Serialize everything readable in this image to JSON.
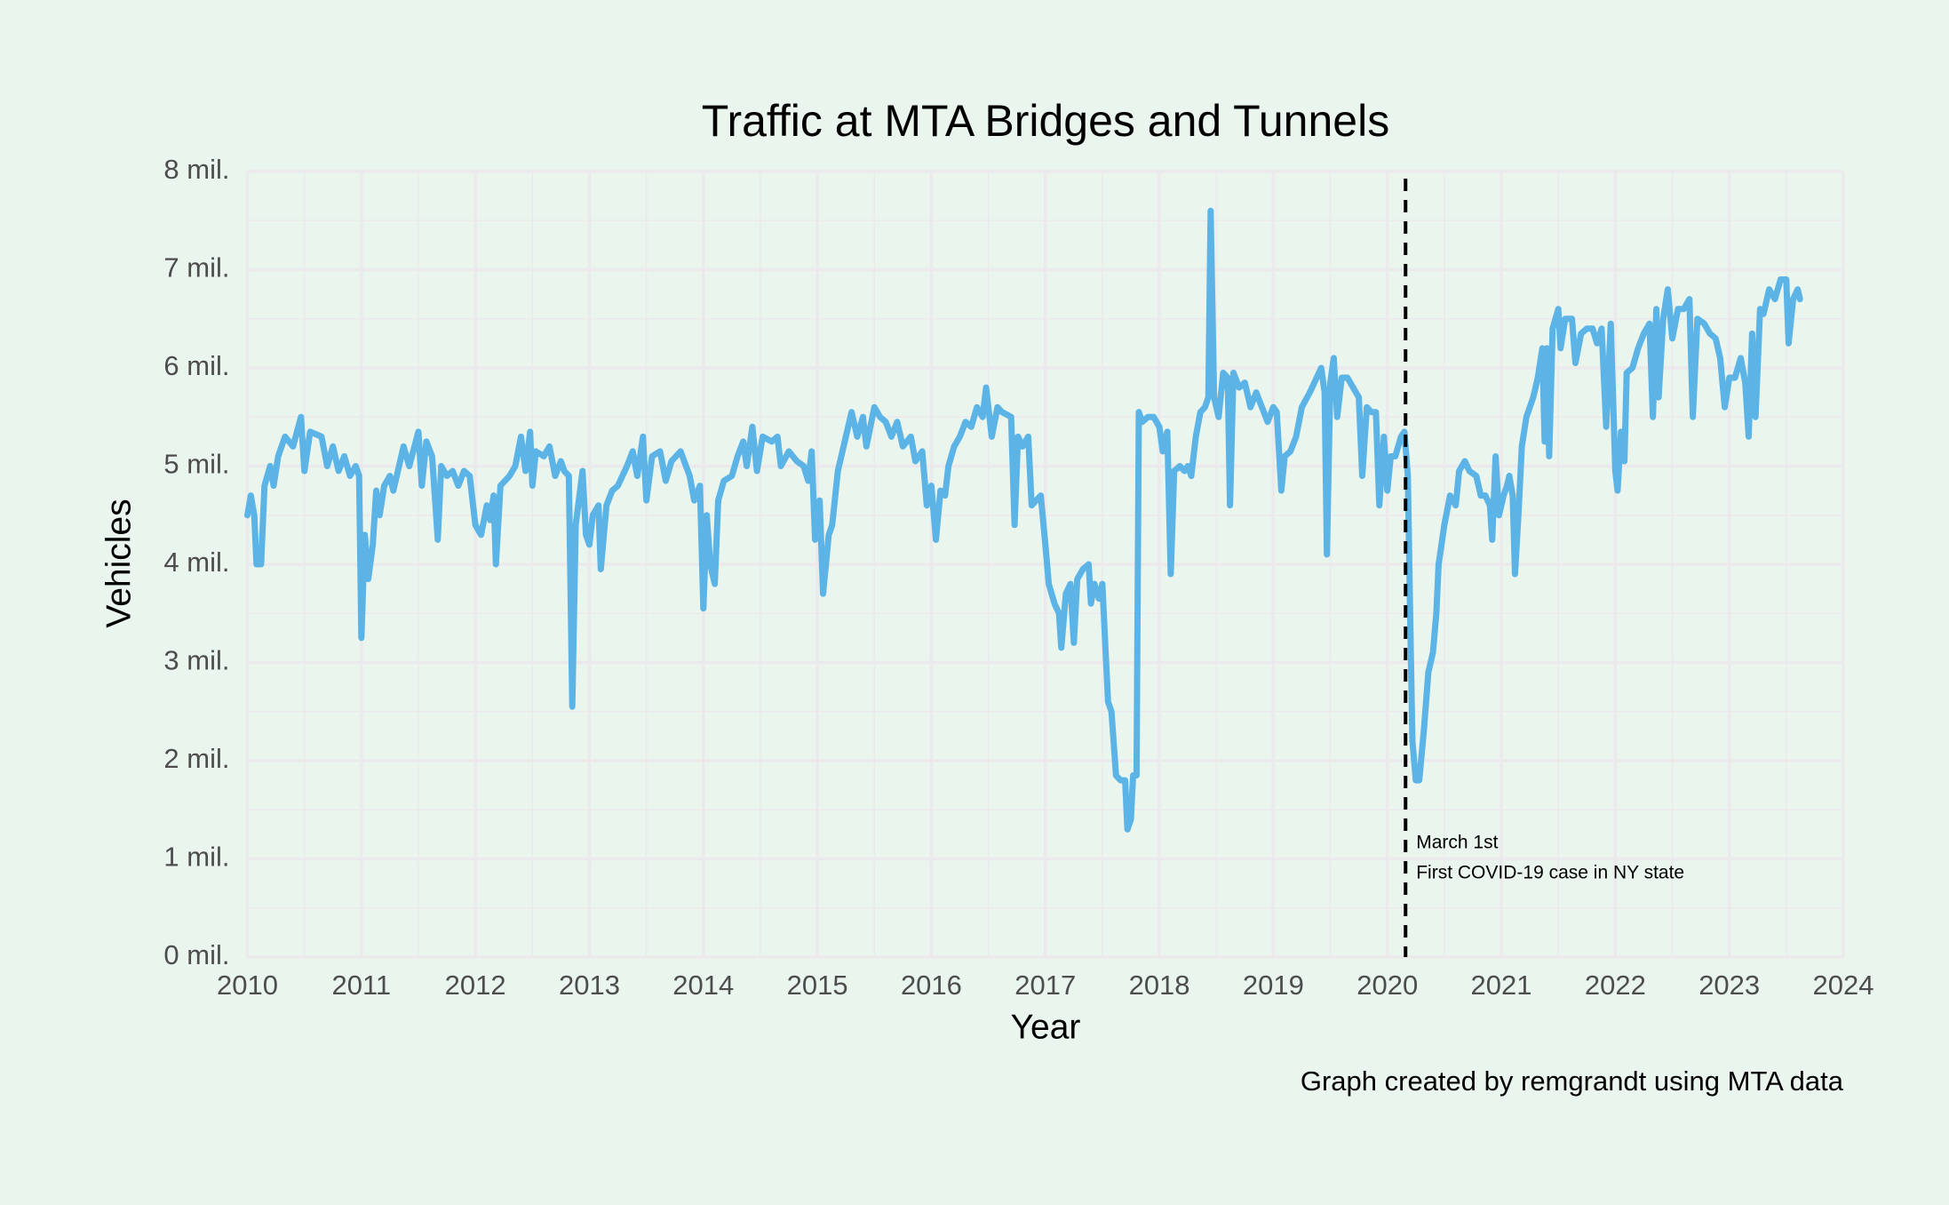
{
  "chart_data": {
    "type": "line",
    "title": "Traffic at MTA Bridges and Tunnels",
    "x_label": "Year",
    "y_label": "Vehicles",
    "caption": "Graph created by remgrandt using MTA data",
    "color": "#5bb4e5",
    "grid": true,
    "minor_grid": true,
    "xlim": [
      2010,
      2024
    ],
    "xticks": [
      2010,
      2011,
      2012,
      2013,
      2014,
      2015,
      2016,
      2017,
      2018,
      2019,
      2020,
      2021,
      2022,
      2023,
      2024
    ],
    "ylim": [
      0,
      8000000
    ],
    "yticks": [
      {
        "value": 0,
        "label": "0 mil."
      },
      {
        "value": 1000000,
        "label": "1 mil."
      },
      {
        "value": 2000000,
        "label": "2 mil."
      },
      {
        "value": 3000000,
        "label": "3 mil."
      },
      {
        "value": 4000000,
        "label": "4 mil."
      },
      {
        "value": 5000000,
        "label": "5 mil."
      },
      {
        "value": 6000000,
        "label": "6 mil."
      },
      {
        "value": 7000000,
        "label": "7 mil."
      },
      {
        "value": 8000000,
        "label": "8 mil."
      }
    ],
    "vline": {
      "x": 2020.16,
      "color": "#000000",
      "dashed": true
    },
    "annotation": [
      "March 1st",
      "First COVID-19 case in NY state"
    ],
    "x": [
      2010.0,
      2010.03,
      2010.06,
      2010.08,
      2010.12,
      2010.15,
      2010.2,
      2010.23,
      2010.27,
      2010.33,
      2010.4,
      2010.47,
      2010.5,
      2010.55,
      2010.65,
      2010.7,
      2010.75,
      2010.8,
      2010.85,
      2010.9,
      2010.95,
      2010.98,
      2011.0,
      2011.03,
      2011.06,
      2011.1,
      2011.13,
      2011.16,
      2011.2,
      2011.25,
      2011.28,
      2011.33,
      2011.37,
      2011.42,
      2011.5,
      2011.53,
      2011.57,
      2011.62,
      2011.65,
      2011.67,
      2011.7,
      2011.75,
      2011.8,
      2011.85,
      2011.9,
      2011.95,
      2012.0,
      2012.05,
      2012.1,
      2012.13,
      2012.16,
      2012.18,
      2012.22,
      2012.3,
      2012.35,
      2012.4,
      2012.44,
      2012.48,
      2012.5,
      2012.53,
      2012.6,
      2012.65,
      2012.7,
      2012.75,
      2012.78,
      2012.82,
      2012.85,
      2012.88,
      2012.94,
      2012.97,
      2013.0,
      2013.03,
      2013.08,
      2013.1,
      2013.15,
      2013.2,
      2013.25,
      2013.33,
      2013.38,
      2013.42,
      2013.47,
      2013.5,
      2013.55,
      2013.62,
      2013.67,
      2013.72,
      2013.8,
      2013.88,
      2013.92,
      2013.97,
      2014.0,
      2014.03,
      2014.06,
      2014.1,
      2014.13,
      2014.18,
      2014.25,
      2014.3,
      2014.35,
      2014.38,
      2014.43,
      2014.47,
      2014.52,
      2014.6,
      2014.65,
      2014.68,
      2014.75,
      2014.82,
      2014.88,
      2014.92,
      2014.95,
      2014.98,
      2015.02,
      2015.05,
      2015.1,
      2015.13,
      2015.18,
      2015.25,
      2015.3,
      2015.35,
      2015.4,
      2015.43,
      2015.5,
      2015.55,
      2015.6,
      2015.65,
      2015.7,
      2015.75,
      2015.82,
      2015.86,
      2015.92,
      2015.96,
      2016.0,
      2016.04,
      2016.08,
      2016.12,
      2016.15,
      2016.2,
      2016.25,
      2016.3,
      2016.35,
      2016.4,
      2016.45,
      2016.48,
      2016.53,
      2016.58,
      2016.62,
      2016.7,
      2016.73,
      2016.76,
      2016.8,
      2016.85,
      2016.88,
      2016.92,
      2016.96,
      2017.0,
      2017.03,
      2017.08,
      2017.12,
      2017.14,
      2017.18,
      2017.22,
      2017.25,
      2017.28,
      2017.33,
      2017.38,
      2017.4,
      2017.43,
      2017.47,
      2017.5,
      2017.55,
      2017.58,
      2017.62,
      2017.66,
      2017.7,
      2017.72,
      2017.75,
      2017.77,
      2017.8,
      2017.82,
      2017.85,
      2017.9,
      2017.95,
      2018.0,
      2018.03,
      2018.07,
      2018.1,
      2018.13,
      2018.18,
      2018.22,
      2018.25,
      2018.28,
      2018.32,
      2018.36,
      2018.4,
      2018.43,
      2018.45,
      2018.48,
      2018.52,
      2018.56,
      2018.6,
      2018.62,
      2018.65,
      2018.7,
      2018.75,
      2018.8,
      2018.85,
      2018.9,
      2018.95,
      2019.0,
      2019.03,
      2019.07,
      2019.1,
      2019.15,
      2019.2,
      2019.25,
      2019.32,
      2019.38,
      2019.42,
      2019.45,
      2019.47,
      2019.5,
      2019.53,
      2019.56,
      2019.6,
      2019.65,
      2019.7,
      2019.75,
      2019.78,
      2019.82,
      2019.86,
      2019.9,
      2019.93,
      2019.97,
      2020.0,
      2020.03,
      2020.07,
      2020.12,
      2020.15,
      2020.18,
      2020.2,
      2020.22,
      2020.25,
      2020.28,
      2020.32,
      2020.36,
      2020.4,
      2020.43,
      2020.45,
      2020.5,
      2020.55,
      2020.6,
      2020.63,
      2020.68,
      2020.72,
      2020.78,
      2020.82,
      2020.86,
      2020.9,
      2020.92,
      2020.95,
      2020.98,
      2021.02,
      2021.05,
      2021.07,
      2021.1,
      2021.12,
      2021.15,
      2021.18,
      2021.22,
      2021.28,
      2021.32,
      2021.36,
      2021.38,
      2021.4,
      2021.42,
      2021.45,
      2021.5,
      2021.52,
      2021.56,
      2021.62,
      2021.65,
      2021.7,
      2021.75,
      2021.8,
      2021.84,
      2021.88,
      2021.92,
      2021.96,
      2022.0,
      2022.02,
      2022.05,
      2022.08,
      2022.1,
      2022.15,
      2022.2,
      2022.25,
      2022.3,
      2022.33,
      2022.36,
      2022.38,
      2022.42,
      2022.46,
      2022.5,
      2022.55,
      2022.6,
      2022.65,
      2022.68,
      2022.72,
      2022.78,
      2022.83,
      2022.88,
      2022.92,
      2022.96,
      2023.0,
      2023.05,
      2023.1,
      2023.14,
      2023.17,
      2023.2,
      2023.23,
      2023.27,
      2023.3,
      2023.35,
      2023.4,
      2023.45,
      2023.5,
      2023.52,
      2023.56,
      2023.6,
      2023.62
    ],
    "values": [
      4500000,
      4700000,
      4500000,
      4000000,
      4000000,
      4800000,
      5000000,
      4800000,
      5100000,
      5300000,
      5200000,
      5500000,
      4950000,
      5350000,
      5300000,
      5000000,
      5200000,
      4950000,
      5100000,
      4900000,
      5000000,
      4900000,
      3250000,
      4300000,
      3850000,
      4200000,
      4750000,
      4500000,
      4800000,
      4900000,
      4750000,
      5000000,
      5200000,
      5000000,
      5350000,
      4800000,
      5250000,
      5100000,
      4600000,
      4250000,
      5000000,
      4900000,
      4950000,
      4800000,
      4950000,
      4900000,
      4400000,
      4300000,
      4600000,
      4450000,
      4700000,
      4000000,
      4800000,
      4900000,
      5000000,
      5300000,
      4950000,
      5350000,
      4800000,
      5150000,
      5100000,
      5200000,
      4900000,
      5050000,
      4950000,
      4900000,
      2550000,
      4400000,
      4950000,
      4300000,
      4200000,
      4500000,
      4600000,
      3950000,
      4600000,
      4750000,
      4800000,
      5000000,
      5150000,
      4900000,
      5300000,
      4650000,
      5100000,
      5150000,
      4850000,
      5050000,
      5150000,
      4900000,
      4650000,
      4800000,
      3550000,
      4500000,
      4000000,
      3800000,
      4650000,
      4850000,
      4900000,
      5100000,
      5250000,
      5000000,
      5400000,
      4950000,
      5300000,
      5250000,
      5300000,
      5000000,
      5150000,
      5050000,
      5000000,
      4850000,
      5150000,
      4250000,
      4650000,
      3700000,
      4300000,
      4400000,
      4950000,
      5300000,
      5550000,
      5300000,
      5500000,
      5200000,
      5600000,
      5500000,
      5450000,
      5300000,
      5450000,
      5200000,
      5300000,
      5050000,
      5150000,
      4600000,
      4800000,
      4250000,
      4750000,
      4700000,
      5000000,
      5200000,
      5300000,
      5450000,
      5400000,
      5600000,
      5500000,
      5800000,
      5300000,
      5600000,
      5550000,
      5500000,
      4400000,
      5300000,
      5200000,
      5300000,
      4600000,
      4650000,
      4700000,
      4200000,
      3800000,
      3600000,
      3500000,
      3150000,
      3700000,
      3800000,
      3200000,
      3850000,
      3950000,
      4000000,
      3600000,
      3800000,
      3650000,
      3800000,
      2600000,
      2500000,
      1850000,
      1800000,
      1800000,
      1300000,
      1400000,
      1850000,
      1850000,
      5550000,
      5450000,
      5500000,
      5500000,
      5400000,
      5150000,
      5350000,
      3900000,
      4950000,
      5000000,
      4950000,
      5000000,
      4900000,
      5300000,
      5550000,
      5600000,
      5700000,
      7600000,
      5700000,
      5500000,
      5950000,
      5900000,
      4600000,
      5950000,
      5800000,
      5850000,
      5600000,
      5750000,
      5600000,
      5450000,
      5600000,
      5550000,
      4750000,
      5100000,
      5150000,
      5300000,
      5600000,
      5750000,
      5900000,
      6000000,
      5750000,
      4100000,
      5850000,
      6100000,
      5500000,
      5900000,
      5900000,
      5800000,
      5700000,
      4900000,
      5600000,
      5550000,
      5550000,
      4600000,
      5300000,
      4750000,
      5100000,
      5100000,
      5300000,
      5350000,
      4900000,
      3500000,
      2200000,
      1800000,
      1800000,
      2300000,
      2900000,
      3100000,
      3500000,
      4000000,
      4400000,
      4700000,
      4600000,
      4950000,
      5050000,
      4950000,
      4900000,
      4700000,
      4700000,
      4600000,
      4250000,
      5100000,
      4500000,
      4700000,
      4800000,
      4900000,
      4700000,
      3900000,
      4500000,
      5200000,
      5500000,
      5700000,
      5900000,
      6200000,
      5250000,
      6200000,
      5100000,
      6400000,
      6600000,
      6200000,
      6500000,
      6500000,
      6050000,
      6350000,
      6400000,
      6400000,
      6250000,
      6400000,
      5400000,
      6450000,
      4950000,
      4750000,
      5350000,
      5050000,
      5950000,
      6000000,
      6200000,
      6350000,
      6450000,
      5500000,
      6600000,
      5700000,
      6500000,
      6800000,
      6300000,
      6600000,
      6600000,
      6700000,
      5500000,
      6500000,
      6450000,
      6350000,
      6300000,
      6100000,
      5600000,
      5900000,
      5900000,
      6100000,
      5850000,
      5300000,
      6350000,
      5500000,
      6600000,
      6550000,
      6800000,
      6700000,
      6900000,
      6900000,
      6250000,
      6700000,
      6800000,
      6700000
    ]
  }
}
